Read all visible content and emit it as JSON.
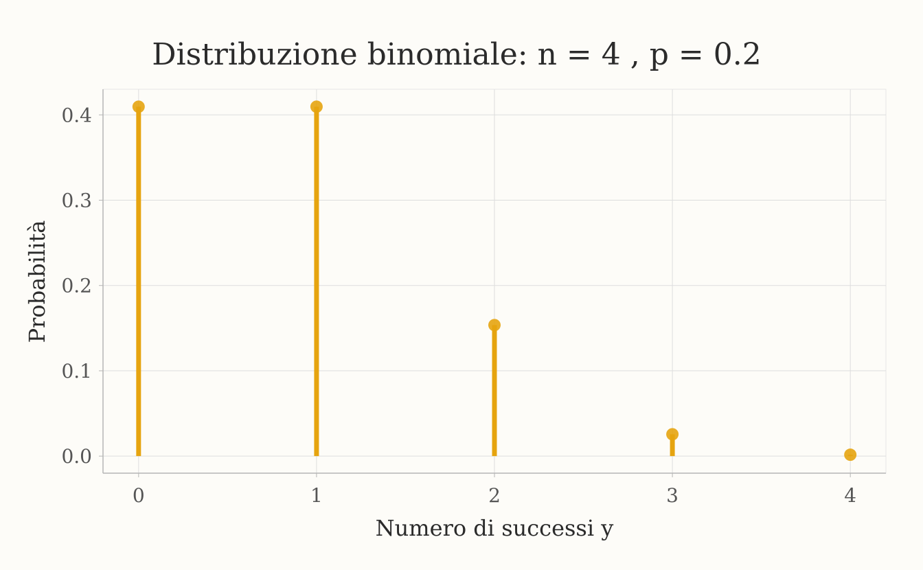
{
  "chart_data": {
    "type": "lollipop",
    "title": "Distribuzione binomiale: n = 4 , p = 0.2",
    "xlabel": "Numero di successi y",
    "ylabel": "Probabilità",
    "x": [
      0,
      1,
      2,
      3,
      4
    ],
    "values": [
      0.4096,
      0.4096,
      0.1536,
      0.0256,
      0.0016
    ],
    "x_ticks": [
      "0",
      "1",
      "2",
      "3",
      "4"
    ],
    "y_ticks": [
      "0.0",
      "0.1",
      "0.2",
      "0.3",
      "0.4"
    ],
    "xlim": [
      -0.2,
      4.2
    ],
    "ylim": [
      -0.02,
      0.43
    ],
    "grid": true,
    "legend": "none",
    "colors": {
      "stem": "#e6a40f",
      "point": "#e6a40f",
      "grid": "#dddddd",
      "axis": "#b5b5b5",
      "background": "#fdfcf8"
    }
  }
}
